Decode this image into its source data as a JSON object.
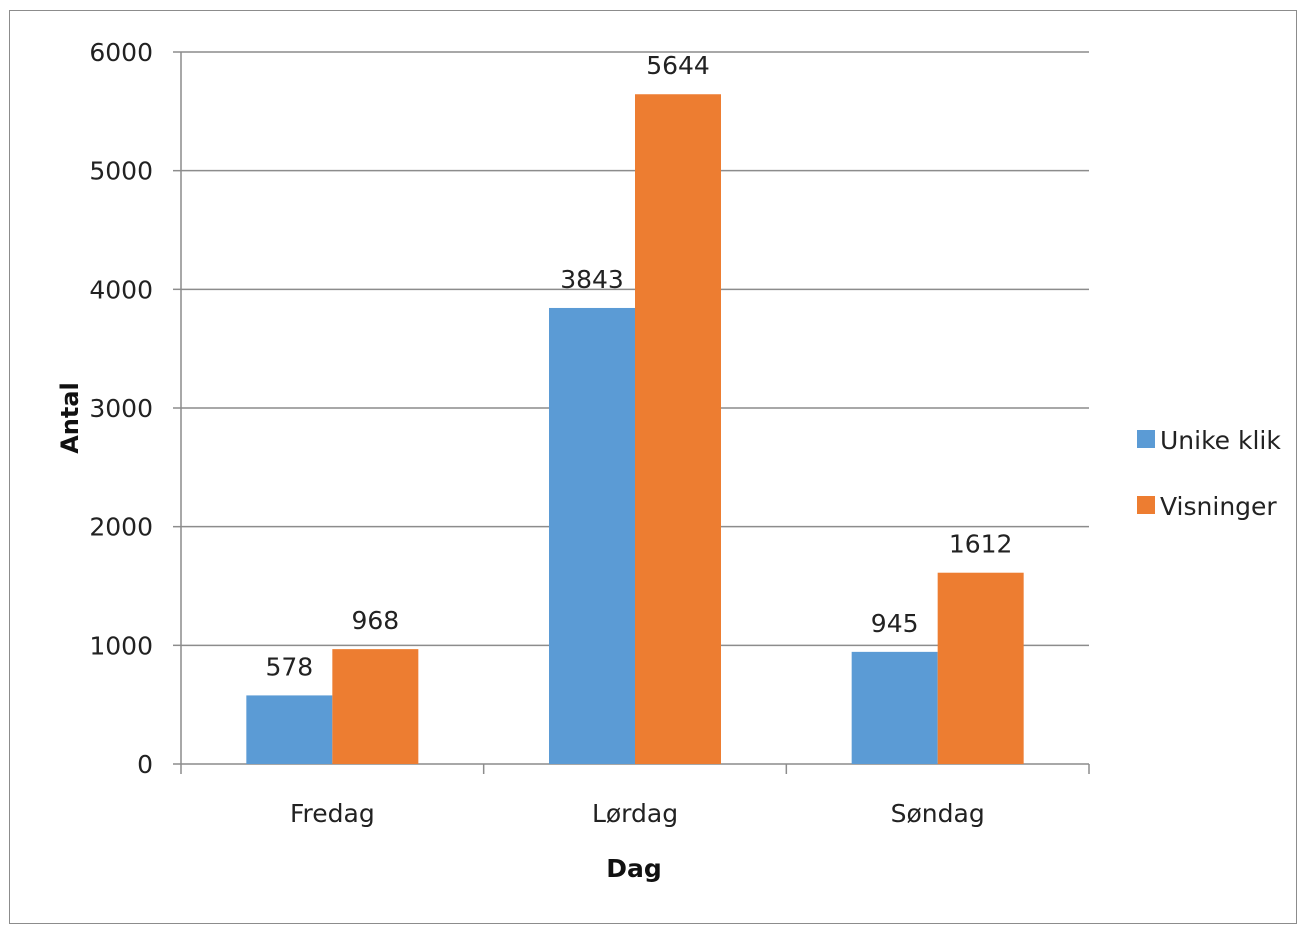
{
  "chart_data": {
    "type": "bar",
    "title": "",
    "xlabel": "Dag",
    "ylabel": "Antal",
    "categories": [
      "Fredag",
      "Lørdag",
      "Søndag"
    ],
    "series": [
      {
        "name": "Unike klik",
        "values": [
          578,
          3843,
          945
        ],
        "color": "#5B9BD5"
      },
      {
        "name": "Visninger",
        "values": [
          968,
          5644,
          1612
        ],
        "color": "#ED7D31"
      }
    ],
    "ylim": [
      0,
      6000
    ],
    "yticks": [
      0,
      1000,
      2000,
      3000,
      4000,
      5000,
      6000
    ],
    "grid": true,
    "legend_position": "right",
    "data_labels": true
  }
}
